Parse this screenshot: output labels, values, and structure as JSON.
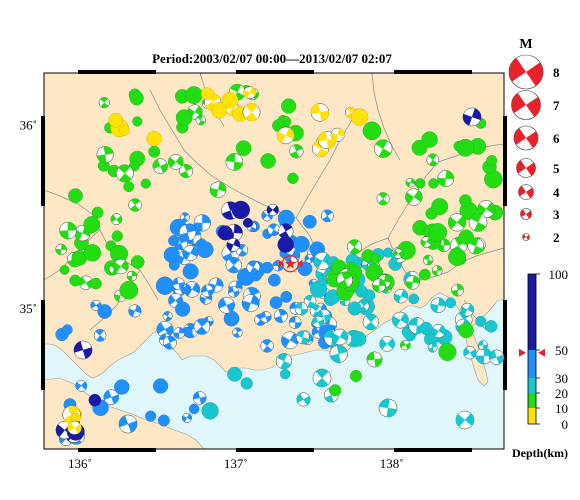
{
  "title": "Period:2003/02/07 00:00––2013/02/07 02:07",
  "map": {
    "lon_ticks": [
      {
        "lon": 136,
        "label": "136˚"
      },
      {
        "lon": 137,
        "label": "137˚"
      },
      {
        "lon": 138,
        "label": "138˚"
      }
    ],
    "lat_ticks": [
      {
        "lat": 36,
        "label": "36˚"
      },
      {
        "lat": 35,
        "label": "35˚"
      }
    ],
    "colors": {
      "land": "#fde7c4",
      "sea": "#dff7fb",
      "border": "#9a9a9a"
    }
  },
  "magnitude_legend": {
    "header": "M",
    "labels": [
      "8",
      "7",
      "6",
      "5",
      "4",
      "3",
      "2"
    ],
    "color": "#e8222b"
  },
  "depth_legend": {
    "ticks": [
      {
        "value": 0,
        "label": "0"
      },
      {
        "value": 10,
        "label": "10"
      },
      {
        "value": 20,
        "label": "20"
      },
      {
        "value": 30,
        "label": "30"
      },
      {
        "value": 50,
        "label": "50"
      },
      {
        "value": 100,
        "label": "100"
      }
    ],
    "unit_label": "Depth(km)",
    "marker_value": 48,
    "bands": [
      {
        "from": 0,
        "to": 10,
        "color": "#ffe200"
      },
      {
        "from": 10,
        "to": 20,
        "color": "#22dd11"
      },
      {
        "from": 20,
        "to": 30,
        "color": "#18c6cf"
      },
      {
        "from": 30,
        "to": 50,
        "color": "#1e90ff"
      },
      {
        "from": 50,
        "to": 100,
        "color": "#1a1aa8"
      }
    ]
  },
  "main_event": {
    "lon": 137.35,
    "lat": 35.24,
    "color": "#e8222b"
  }
}
